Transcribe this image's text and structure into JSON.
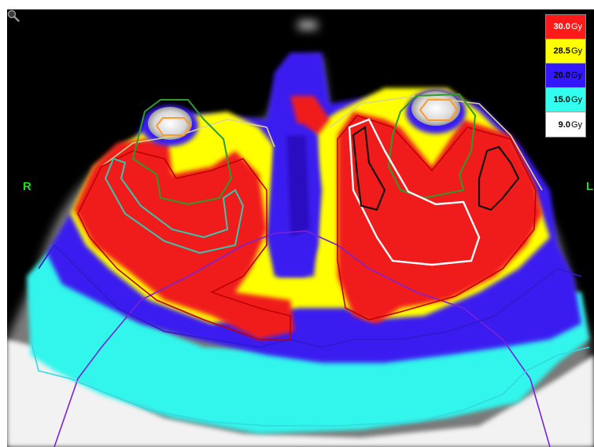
{
  "orientation": {
    "right": "R",
    "left": "L"
  },
  "legend": [
    {
      "value": "30.0",
      "unit": "Gy",
      "color": "#ff1a1a",
      "text_color": "#ffffff"
    },
    {
      "value": "28.5",
      "unit": "Gy",
      "color": "#ffff00",
      "text_color": "#000000"
    },
    {
      "value": "20.0",
      "unit": "Gy",
      "color": "#3318ff",
      "text_color": "#000000"
    },
    {
      "value": "15.0",
      "unit": "Gy",
      "color": "#33ffee",
      "text_color": "#000000"
    },
    {
      "value": "9.0",
      "unit": "Gy",
      "color": "#ffffff",
      "text_color": "#000000"
    }
  ],
  "icons": {
    "zoom": "magnifier-icon"
  },
  "colors": {
    "background": "#000000",
    "contour_green": "#2e9a2e",
    "contour_teal": "#34c8b0",
    "contour_purple": "#7a22d8",
    "contour_orange": "#ff9a2a",
    "contour_red": "#cc0000",
    "contour_white": "#ffffff",
    "contour_black": "#111111"
  }
}
